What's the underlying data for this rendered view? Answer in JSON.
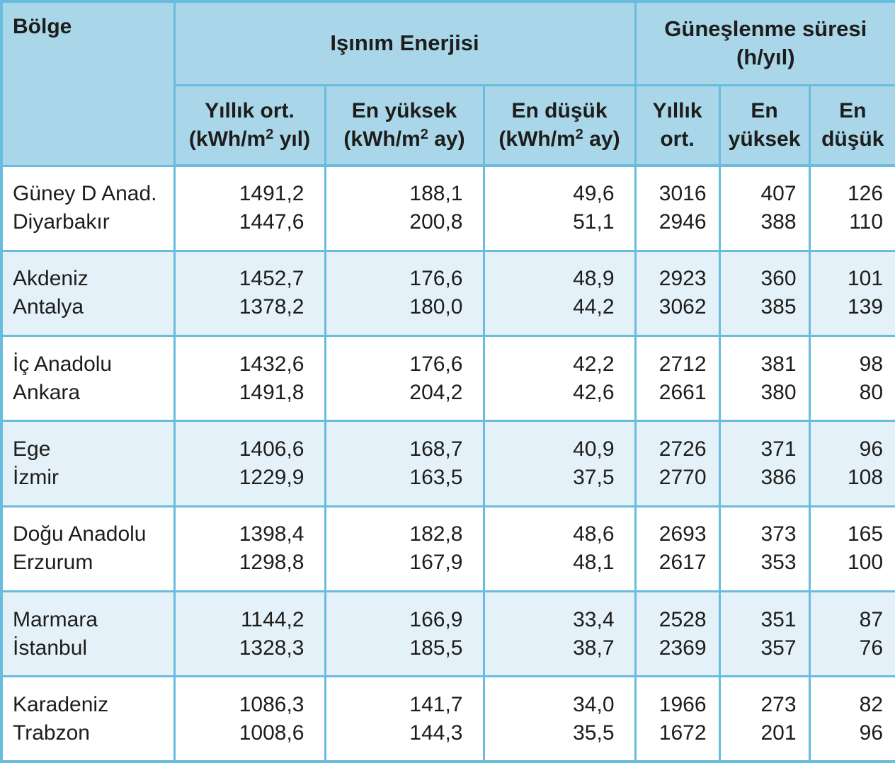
{
  "colors": {
    "header_bg": "#a9d6e8",
    "row_bg": "#ffffff",
    "row_alt_bg": "#e4f1f9",
    "border": "#68bcde",
    "text": "#1d1d1b"
  },
  "chart_data": {
    "type": "table",
    "corner_label": "Bölge",
    "groups": [
      {
        "label": "Işınım Enerjisi",
        "colspan": 3
      },
      {
        "label_line1": "Güneşlenme süresi",
        "label_line2": "(h/yıl)",
        "colspan": 3
      }
    ],
    "sub_headers": [
      {
        "line1": "Yıllık ort.",
        "unit_pre": "(kWh/m",
        "unit_sup": "2",
        "unit_post": " yıl)"
      },
      {
        "line1": "En yüksek",
        "unit_pre": "(kWh/m",
        "unit_sup": "2",
        "unit_post": " ay)"
      },
      {
        "line1": "En düşük",
        "unit_pre": "(kWh/m",
        "unit_sup": "2",
        "unit_post": " ay)"
      },
      {
        "line1": "Yıllık",
        "unit_pre": "ort.",
        "unit_sup": "",
        "unit_post": ""
      },
      {
        "line1": "En",
        "unit_pre": "yüksek",
        "unit_sup": "",
        "unit_post": ""
      },
      {
        "line1": "En",
        "unit_pre": "düşük",
        "unit_sup": "",
        "unit_post": ""
      }
    ],
    "rows": [
      {
        "region": "Güney D Anad.",
        "city": "Diyarbakır",
        "cells": [
          {
            "top": "1491,2",
            "bottom": "1447,6"
          },
          {
            "top": "188,1",
            "bottom": "200,8"
          },
          {
            "top": "49,6",
            "bottom": "51,1"
          },
          {
            "top": "3016",
            "bottom": "2946"
          },
          {
            "top": "407",
            "bottom": "388"
          },
          {
            "top": "126",
            "bottom": "110"
          }
        ]
      },
      {
        "region": "Akdeniz",
        "city": "Antalya",
        "cells": [
          {
            "top": "1452,7",
            "bottom": "1378,2"
          },
          {
            "top": "176,6",
            "bottom": "180,0"
          },
          {
            "top": "48,9",
            "bottom": "44,2"
          },
          {
            "top": "2923",
            "bottom": "3062"
          },
          {
            "top": "360",
            "bottom": "385"
          },
          {
            "top": "101",
            "bottom": "139"
          }
        ]
      },
      {
        "region": "İç Anadolu",
        "city": "Ankara",
        "cells": [
          {
            "top": "1432,6",
            "bottom": "1491,8"
          },
          {
            "top": "176,6",
            "bottom": "204,2"
          },
          {
            "top": "42,2",
            "bottom": "42,6"
          },
          {
            "top": "2712",
            "bottom": "2661"
          },
          {
            "top": "381",
            "bottom": "380"
          },
          {
            "top": "98",
            "bottom": "80"
          }
        ]
      },
      {
        "region": "Ege",
        "city": "İzmir",
        "cells": [
          {
            "top": "1406,6",
            "bottom": "1229,9"
          },
          {
            "top": "168,7",
            "bottom": "163,5"
          },
          {
            "top": "40,9",
            "bottom": "37,5"
          },
          {
            "top": "2726",
            "bottom": "2770"
          },
          {
            "top": "371",
            "bottom": "386"
          },
          {
            "top": "96",
            "bottom": "108"
          }
        ]
      },
      {
        "region": "Doğu Anadolu",
        "city": "Erzurum",
        "cells": [
          {
            "top": "1398,4",
            "bottom": "1298,8"
          },
          {
            "top": "182,8",
            "bottom": "167,9"
          },
          {
            "top": "48,6",
            "bottom": "48,1"
          },
          {
            "top": "2693",
            "bottom": "2617"
          },
          {
            "top": "373",
            "bottom": "353"
          },
          {
            "top": "165",
            "bottom": "100"
          }
        ]
      },
      {
        "region": "Marmara",
        "city": "İstanbul",
        "cells": [
          {
            "top": "1144,2",
            "bottom": "1328,3"
          },
          {
            "top": "166,9",
            "bottom": "185,5"
          },
          {
            "top": "33,4",
            "bottom": "38,7"
          },
          {
            "top": "2528",
            "bottom": "2369"
          },
          {
            "top": "351",
            "bottom": "357"
          },
          {
            "top": "87",
            "bottom": "76"
          }
        ]
      },
      {
        "region": "Karadeniz",
        "city": "Trabzon",
        "cells": [
          {
            "top": "1086,3",
            "bottom": "1008,6"
          },
          {
            "top": "141,7",
            "bottom": "144,3"
          },
          {
            "top": "34,0",
            "bottom": "35,5"
          },
          {
            "top": "1966",
            "bottom": "1672"
          },
          {
            "top": "273",
            "bottom": "201"
          },
          {
            "top": "82",
            "bottom": "96"
          }
        ]
      }
    ]
  }
}
